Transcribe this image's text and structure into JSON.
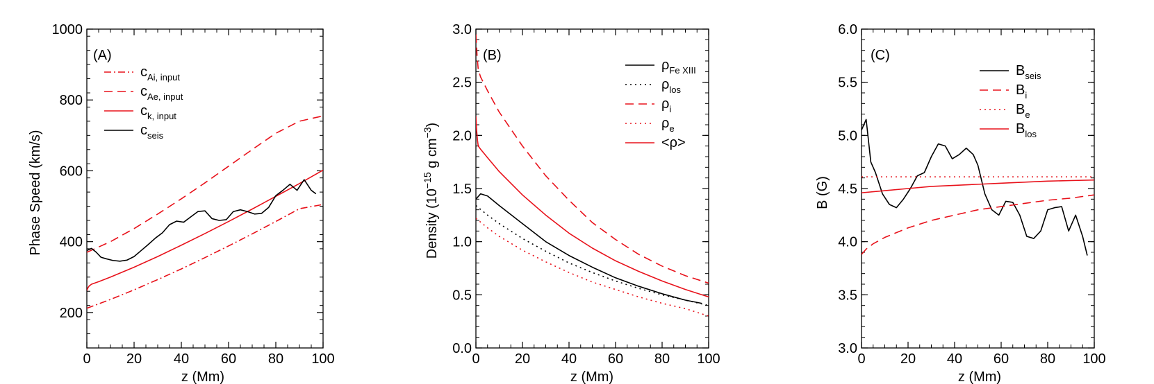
{
  "colors": {
    "black": "#000000",
    "red": "#e8121b"
  },
  "chart_data": [
    {
      "type": "line",
      "panel_label": "(A)",
      "xlabel": "z (Mm)",
      "ylabel": "Phase Speed (km/s)",
      "xlim": [
        0,
        100
      ],
      "ylim": [
        100,
        1000
      ],
      "xticks": [
        "0",
        "20",
        "40",
        "60",
        "80",
        "100"
      ],
      "yticks": [
        "200",
        "400",
        "600",
        "800",
        "1000"
      ],
      "legend_position": "top-left",
      "series": [
        {
          "name_main": "c",
          "name_sub": "Ai, input",
          "color": "red",
          "dash": "dashdot",
          "x": [
            0,
            10,
            20,
            30,
            40,
            50,
            60,
            70,
            80,
            90,
            100
          ],
          "y": [
            212,
            237,
            264,
            293,
            323,
            355,
            388,
            422,
            457,
            493,
            505
          ]
        },
        {
          "name_main": "c",
          "name_sub": "Ae, input",
          "color": "red",
          "dash": "dashed",
          "x": [
            0,
            10,
            20,
            30,
            40,
            50,
            60,
            70,
            80,
            90,
            100
          ],
          "y": [
            370,
            400,
            437,
            478,
            521,
            566,
            613,
            660,
            706,
            740,
            755
          ]
        },
        {
          "name_main": "c",
          "name_sub": "k, input",
          "color": "red",
          "dash": "solid",
          "x": [
            0,
            0.5,
            1,
            2,
            5,
            10,
            20,
            30,
            40,
            50,
            60,
            70,
            80,
            90,
            100
          ],
          "y": [
            262,
            270,
            275,
            280,
            287,
            300,
            328,
            358,
            390,
            423,
            457,
            492,
            528,
            564,
            602
          ]
        },
        {
          "name_main": "c",
          "name_sub": "seis",
          "color": "black",
          "dash": "solid",
          "x": [
            0,
            2,
            4,
            6,
            8,
            11,
            14,
            17,
            20,
            23,
            26,
            29,
            32,
            35,
            38,
            41,
            44,
            47,
            50,
            53,
            56,
            59,
            62,
            65,
            68,
            71,
            74,
            77,
            80,
            83,
            86,
            89,
            92,
            95,
            97
          ],
          "y": [
            375,
            381,
            370,
            356,
            352,
            347,
            345,
            348,
            358,
            375,
            392,
            410,
            425,
            448,
            458,
            455,
            470,
            485,
            487,
            465,
            460,
            462,
            485,
            490,
            485,
            478,
            480,
            497,
            530,
            545,
            562,
            545,
            575,
            545,
            535
          ]
        }
      ]
    },
    {
      "type": "line",
      "panel_label": "(B)",
      "xlabel": "z (Mm)",
      "ylabel_main": "Density (10",
      "ylabel_sup": "−15",
      "ylabel_mid": " g cm",
      "ylabel_sup2": "−3",
      "ylabel_end": ")",
      "xlim": [
        0,
        100
      ],
      "ylim": [
        0.0,
        3.0
      ],
      "xticks": [
        "0",
        "20",
        "40",
        "60",
        "80",
        "100"
      ],
      "yticks": [
        "0.0",
        "0.5",
        "1.0",
        "1.5",
        "2.0",
        "2.5",
        "3.0"
      ],
      "legend_position": "top-right",
      "series": [
        {
          "name_main": "ρ",
          "name_sub": "Fe XIII",
          "color": "black",
          "dash": "solid",
          "x": [
            0,
            2,
            5,
            10,
            20,
            30,
            40,
            50,
            60,
            70,
            80,
            90,
            97
          ],
          "y": [
            1.4,
            1.45,
            1.43,
            1.34,
            1.17,
            1.0,
            0.87,
            0.76,
            0.66,
            0.58,
            0.51,
            0.45,
            0.42
          ]
        },
        {
          "name_main": "ρ",
          "name_sub": "los",
          "color": "black",
          "dash": "dotted",
          "x": [
            0,
            5,
            10,
            20,
            30,
            40,
            50,
            60,
            70,
            80,
            90,
            100
          ],
          "y": [
            1.34,
            1.25,
            1.17,
            1.03,
            0.91,
            0.8,
            0.71,
            0.63,
            0.56,
            0.5,
            0.45,
            0.4
          ]
        },
        {
          "name_main": "ρ",
          "name_sub": "i",
          "color": "red",
          "dash": "dashed",
          "x": [
            0,
            0.5,
            1,
            2,
            5,
            10,
            20,
            30,
            40,
            50,
            60,
            70,
            80,
            90,
            100
          ],
          "y": [
            2.95,
            2.75,
            2.62,
            2.55,
            2.42,
            2.22,
            1.9,
            1.62,
            1.39,
            1.18,
            1.02,
            0.88,
            0.77,
            0.68,
            0.61
          ]
        },
        {
          "name_main": "ρ",
          "name_sub": "e",
          "color": "red",
          "dash": "dotted",
          "x": [
            0,
            5,
            10,
            20,
            30,
            40,
            50,
            60,
            70,
            80,
            90,
            100
          ],
          "y": [
            1.22,
            1.13,
            1.05,
            0.92,
            0.81,
            0.71,
            0.62,
            0.55,
            0.48,
            0.42,
            0.37,
            0.3
          ]
        },
        {
          "name_main": "<ρ>",
          "name_sub": "",
          "color": "red",
          "dash": "solid",
          "x": [
            0,
            0.3,
            0.7,
            1,
            2,
            5,
            10,
            20,
            30,
            40,
            50,
            60,
            70,
            80,
            90,
            100
          ],
          "y": [
            2.18,
            2.05,
            1.95,
            1.9,
            1.87,
            1.79,
            1.66,
            1.44,
            1.25,
            1.08,
            0.94,
            0.82,
            0.72,
            0.63,
            0.55,
            0.48
          ]
        }
      ]
    },
    {
      "type": "line",
      "panel_label": "(C)",
      "xlabel": "z (Mm)",
      "ylabel": "B (G)",
      "xlim": [
        0,
        100
      ],
      "ylim": [
        3.0,
        6.0
      ],
      "xticks": [
        "0",
        "20",
        "40",
        "60",
        "80",
        "100"
      ],
      "yticks": [
        "3.0",
        "3.5",
        "4.0",
        "4.5",
        "5.0",
        "5.5",
        "6.0"
      ],
      "legend_position": "top-right",
      "series": [
        {
          "name_main": "B",
          "name_sub": "seis",
          "color": "black",
          "dash": "solid",
          "x": [
            0,
            2,
            4,
            6,
            9,
            12,
            15,
            18,
            21,
            24,
            27,
            30,
            33,
            36,
            39,
            42,
            45,
            48,
            50,
            53,
            56,
            59,
            62,
            65,
            68,
            71,
            74,
            77,
            80,
            83,
            86,
            89,
            92,
            95,
            97
          ],
          "y": [
            5.05,
            5.15,
            4.75,
            4.65,
            4.45,
            4.35,
            4.32,
            4.4,
            4.5,
            4.62,
            4.65,
            4.8,
            4.92,
            4.9,
            4.78,
            4.82,
            4.88,
            4.82,
            4.72,
            4.45,
            4.3,
            4.25,
            4.38,
            4.37,
            4.25,
            4.05,
            4.03,
            4.1,
            4.3,
            4.32,
            4.33,
            4.1,
            4.25,
            4.05,
            3.87
          ]
        },
        {
          "name_main": "B",
          "name_sub": "i",
          "color": "red",
          "dash": "dashed",
          "x": [
            0,
            2,
            5,
            10,
            20,
            30,
            40,
            50,
            60,
            70,
            80,
            90,
            100
          ],
          "y": [
            3.88,
            3.93,
            3.98,
            4.04,
            4.13,
            4.2,
            4.25,
            4.3,
            4.33,
            4.36,
            4.39,
            4.41,
            4.44
          ]
        },
        {
          "name_main": "B",
          "name_sub": "e",
          "color": "red",
          "dash": "dotted",
          "x": [
            0,
            20,
            40,
            60,
            80,
            100
          ],
          "y": [
            4.61,
            4.61,
            4.61,
            4.61,
            4.61,
            4.61
          ]
        },
        {
          "name_main": "B",
          "name_sub": "los",
          "color": "red",
          "dash": "solid",
          "x": [
            0,
            10,
            20,
            30,
            40,
            50,
            60,
            70,
            80,
            90,
            100
          ],
          "y": [
            4.46,
            4.48,
            4.5,
            4.52,
            4.53,
            4.54,
            4.55,
            4.56,
            4.57,
            4.575,
            4.58
          ]
        }
      ]
    }
  ]
}
